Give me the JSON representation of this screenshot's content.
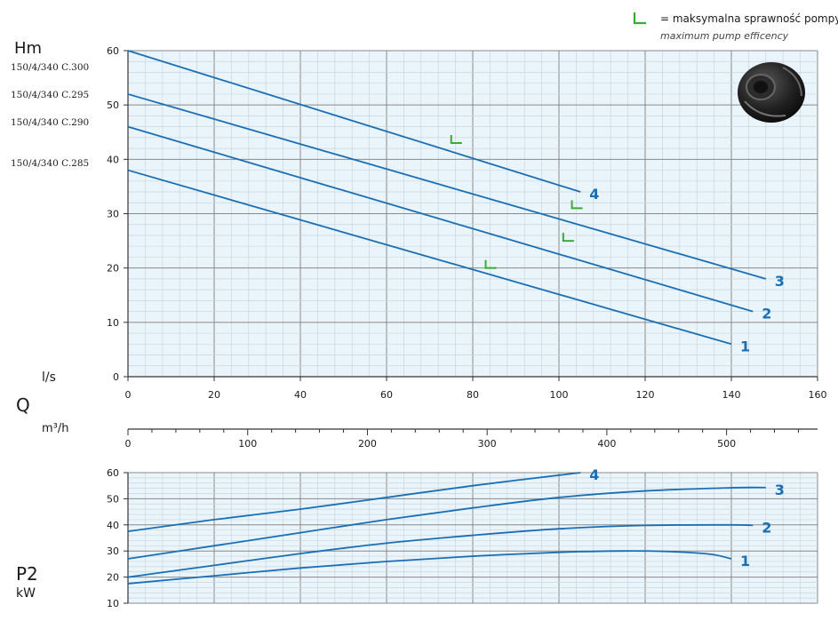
{
  "legend": {
    "marker_text": "= maksymalna sprawność pompy",
    "marker_text_en": "maximum pump efficency",
    "marker_color": "#3aaa35"
  },
  "labels": {
    "hm": "Hm",
    "q": "Q",
    "ls": "l/s",
    "m3h": "m³/h",
    "p2": "P2",
    "kw": "kW"
  },
  "models": [
    "150/4/340 C.300",
    "150/4/340 C.295",
    "150/4/340 C.290",
    "150/4/340 C.285"
  ],
  "colors": {
    "curve": "#1a6fb4",
    "curve_label": "#1a6fb4",
    "plot_bg": "#eaf4fb",
    "grid_major": "#8a8a8a",
    "grid_minor": "#c9d6df",
    "efficiency_marker": "#3aaa35"
  },
  "chart_data": [
    {
      "type": "line",
      "title": "",
      "xlabel": "l/s",
      "ylabel": "Hm",
      "xlim": [
        0,
        160
      ],
      "ylim": [
        0,
        60
      ],
      "xticks": [
        0,
        20,
        40,
        60,
        80,
        100,
        120,
        140,
        160
      ],
      "yticks": [
        0,
        10,
        20,
        30,
        40,
        50,
        60
      ],
      "series": [
        {
          "name": "1",
          "points": [
            [
              0,
              38
            ],
            [
              140,
              6
            ]
          ]
        },
        {
          "name": "2",
          "points": [
            [
              0,
              46
            ],
            [
              145,
              12
            ]
          ]
        },
        {
          "name": "3",
          "points": [
            [
              0,
              52
            ],
            [
              148,
              18
            ]
          ]
        },
        {
          "name": "4",
          "points": [
            [
              0,
              60
            ],
            [
              105,
              34
            ]
          ]
        }
      ],
      "efficiency_points": [
        [
          83,
          20
        ],
        [
          101,
          25
        ],
        [
          103,
          31
        ],
        [
          75,
          43
        ]
      ]
    },
    {
      "type": "axis",
      "xlabel": "m³/h",
      "xlim": [
        0,
        576
      ],
      "xticks": [
        0,
        100,
        200,
        300,
        400,
        500
      ]
    },
    {
      "type": "line",
      "title": "",
      "xlabel": "l/s",
      "ylabel": "P2 kW",
      "xlim": [
        0,
        160
      ],
      "ylim": [
        10,
        60
      ],
      "yticks": [
        10,
        20,
        30,
        40,
        50,
        60
      ],
      "series": [
        {
          "name": "1",
          "points": [
            [
              0,
              17.5
            ],
            [
              20,
              20.5
            ],
            [
              40,
              23.5
            ],
            [
              60,
              26
            ],
            [
              80,
              28
            ],
            [
              100,
              29.5
            ],
            [
              115,
              30
            ],
            [
              125,
              29.8
            ],
            [
              135,
              28.8
            ],
            [
              140,
              27
            ]
          ]
        },
        {
          "name": "2",
          "points": [
            [
              0,
              20
            ],
            [
              20,
              24.5
            ],
            [
              40,
              29
            ],
            [
              60,
              33
            ],
            [
              80,
              36
            ],
            [
              100,
              38.5
            ],
            [
              120,
              39.8
            ],
            [
              140,
              40
            ],
            [
              145,
              39.8
            ]
          ]
        },
        {
          "name": "3",
          "points": [
            [
              0,
              27
            ],
            [
              20,
              32
            ],
            [
              40,
              37
            ],
            [
              60,
              42
            ],
            [
              80,
              46.5
            ],
            [
              100,
              50.5
            ],
            [
              120,
              53
            ],
            [
              140,
              54.2
            ],
            [
              148,
              54.3
            ]
          ]
        },
        {
          "name": "4",
          "points": [
            [
              0,
              37.5
            ],
            [
              20,
              42
            ],
            [
              40,
              46
            ],
            [
              60,
              50.5
            ],
            [
              80,
              55
            ],
            [
              105,
              60
            ]
          ]
        }
      ]
    }
  ]
}
